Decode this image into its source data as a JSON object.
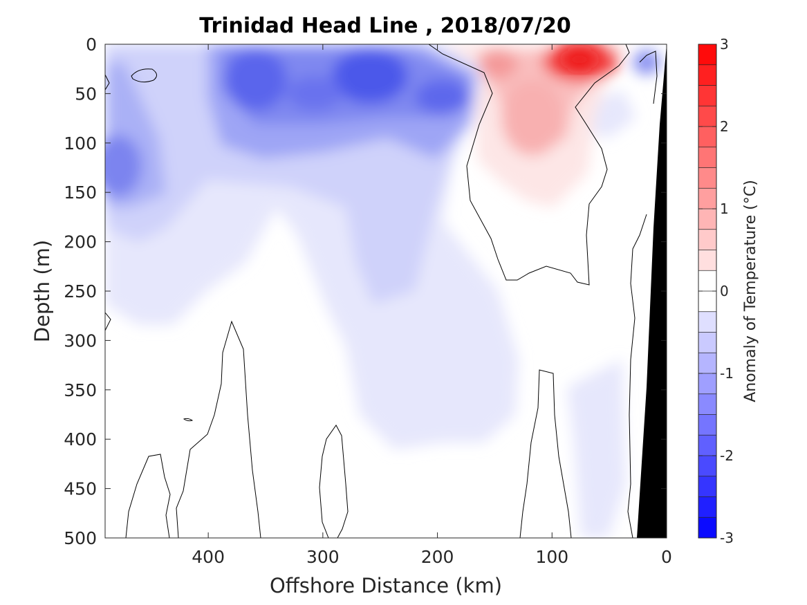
{
  "chart_data": {
    "type": "heatmap",
    "title": "Trinidad Head Line , 2018/07/20",
    "xlabel": "Offshore Distance (km)",
    "ylabel": "Depth (m)",
    "xlim": [
      490,
      0
    ],
    "ylim": [
      0,
      500
    ],
    "x_ticks": [
      "400",
      "300",
      "200",
      "100",
      "0"
    ],
    "x_tick_values": [
      400,
      300,
      200,
      100,
      0
    ],
    "y_ticks": [
      "0",
      "50",
      "100",
      "150",
      "200",
      "250",
      "300",
      "350",
      "400",
      "450",
      "500"
    ],
    "y_tick_values": [
      0,
      50,
      100,
      150,
      200,
      250,
      300,
      350,
      400,
      450,
      500
    ],
    "colorbar": {
      "label": "Anomaly of Temperature (°C)",
      "range": [
        -3,
        3
      ],
      "ticks": [
        "3",
        "2",
        "1",
        "0",
        "-1",
        "-2",
        "-3"
      ],
      "tick_values": [
        3,
        2,
        1,
        0,
        -1,
        -2,
        -3
      ],
      "levels": 24
    },
    "zero_contour": true,
    "features": [
      {
        "kind": "cold",
        "x": 265,
        "y": 30,
        "value": -2.1
      },
      {
        "kind": "cold",
        "x": 360,
        "y": 50,
        "value": -2.0
      },
      {
        "kind": "cold",
        "x": 190,
        "y": 55,
        "value": -1.8
      },
      {
        "kind": "cold",
        "x": 480,
        "y": 125,
        "value": -1.3
      },
      {
        "kind": "warm",
        "x": 80,
        "y": 20,
        "value": 2.7
      },
      {
        "kind": "warm",
        "x": 150,
        "y": 20,
        "value": 1.2
      },
      {
        "kind": "warm",
        "x": 115,
        "y": 120,
        "value": 0.8
      }
    ],
    "colors": {
      "warm_max": "#ff0000",
      "cold_max": "#0000ff",
      "bathymetry": "#000000",
      "contour": "#000000"
    }
  }
}
